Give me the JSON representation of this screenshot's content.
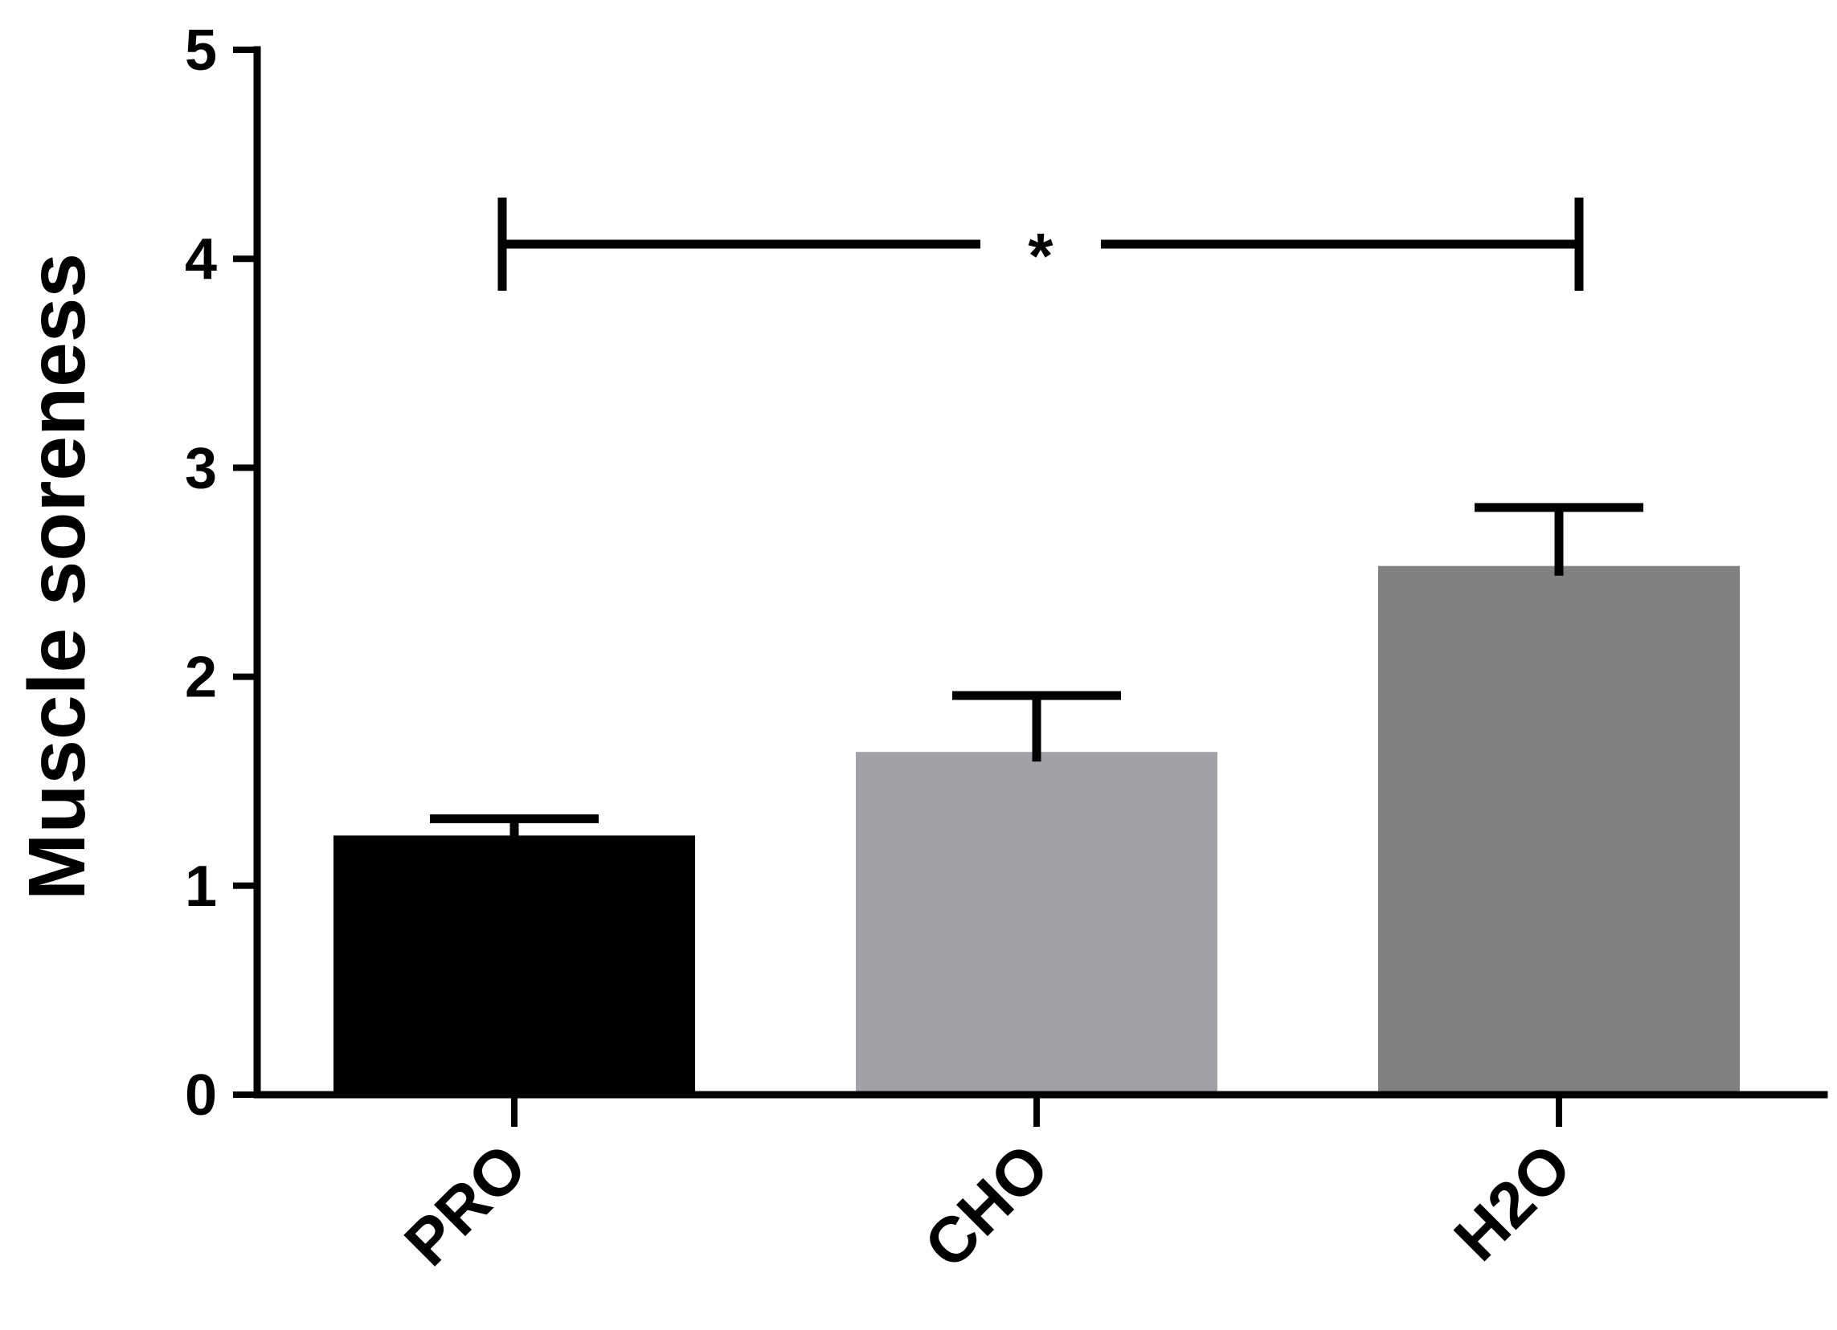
{
  "chart_data": {
    "type": "bar",
    "title": "",
    "xlabel": "",
    "ylabel": "Muscle soreness",
    "ylim": [
      0,
      5
    ],
    "yticks": [
      "0",
      "1",
      "2",
      "3",
      "4",
      "5"
    ],
    "categories": [
      "PRO",
      "CHO",
      "H2O"
    ],
    "values": [
      1.24,
      1.64,
      2.53
    ],
    "errors": [
      0.08,
      0.27,
      0.28
    ],
    "bar_colors": [
      "#000000",
      "#a1a1a6",
      "#808080"
    ],
    "significance": {
      "from": "PRO",
      "to": "H2O",
      "value": 4.07,
      "label": "*"
    },
    "grid": false,
    "legend": "none"
  }
}
